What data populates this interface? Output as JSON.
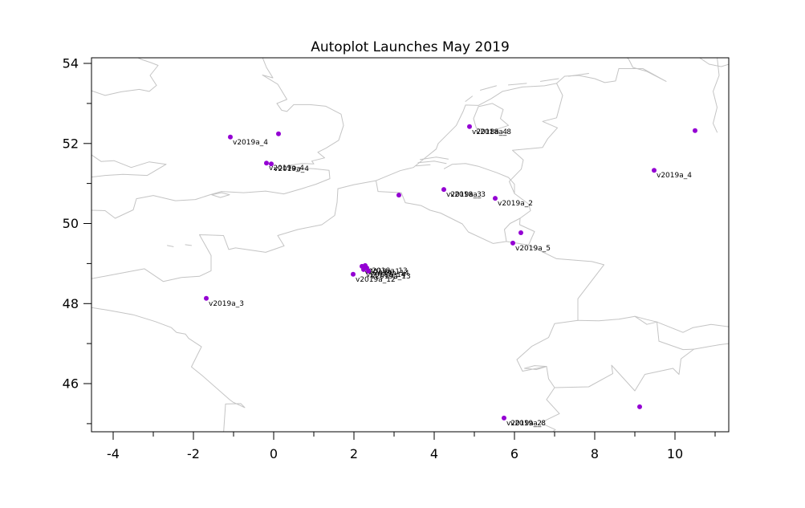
{
  "title": "Autoplot Launches May 2019",
  "colors": {
    "point": "#9400d3",
    "map_outline": "#c4c4c4",
    "axis": "#000000",
    "background": "#ffffff",
    "label_text": "#000000"
  },
  "chart_data": {
    "type": "scatter",
    "title": "Autoplot Launches May 2019",
    "xlabel": "",
    "ylabel": "",
    "basemap": "western-europe-coastline-and-border-outlines",
    "grid": false,
    "legend": "none",
    "xlim": [
      -4.54,
      11.34
    ],
    "ylim": [
      44.8,
      54.14
    ],
    "x_ticks": [
      -4,
      -2,
      0,
      2,
      4,
      6,
      8,
      10
    ],
    "x_minor_ticks": [
      -3,
      -1,
      1,
      3,
      5,
      7,
      9,
      11
    ],
    "y_ticks": [
      46,
      48,
      50,
      52,
      54
    ],
    "y_minor_ticks": [
      45,
      47,
      49,
      51,
      53
    ],
    "marker_color": "#9400d3",
    "points": [
      {
        "x": -1.08,
        "y": 52.16,
        "labels": [
          "v2019a_4"
        ]
      },
      {
        "x": 0.12,
        "y": 52.24,
        "labels": []
      },
      {
        "x": -0.18,
        "y": 51.51,
        "labels": [
          "v2019a_4"
        ]
      },
      {
        "x": -0.06,
        "y": 51.49,
        "labels": [
          "v2019a_4"
        ]
      },
      {
        "x": 4.88,
        "y": 52.42,
        "labels": [
          "v2018a_4",
          "v2018a_8"
        ]
      },
      {
        "x": 10.5,
        "y": 52.32,
        "labels": []
      },
      {
        "x": 9.48,
        "y": 51.33,
        "labels": [
          "v2019a_4"
        ]
      },
      {
        "x": 3.12,
        "y": 50.71,
        "labels": []
      },
      {
        "x": 4.24,
        "y": 50.85,
        "labels": [
          "v2019a_3",
          "v2018a_3"
        ]
      },
      {
        "x": 5.52,
        "y": 50.63,
        "labels": [
          "v2019a_2"
        ]
      },
      {
        "x": 6.16,
        "y": 49.77,
        "labels": []
      },
      {
        "x": 5.96,
        "y": 49.51,
        "labels": [
          "v2019a_5"
        ]
      },
      {
        "x": 1.98,
        "y": 48.73,
        "labels": [
          "v2019a_12"
        ]
      },
      {
        "x": 2.2,
        "y": 48.93,
        "labels": [
          "v2019a_1"
        ]
      },
      {
        "x": 2.28,
        "y": 48.95,
        "labels": [
          "v2018a_13"
        ]
      },
      {
        "x": 2.32,
        "y": 48.89,
        "labels": [
          "v2019a_14"
        ]
      },
      {
        "x": 2.24,
        "y": 48.85,
        "labels": [
          "v2018a_14"
        ]
      },
      {
        "x": 2.36,
        "y": 48.81,
        "labels": [
          "v2019a_13"
        ]
      },
      {
        "x": -1.68,
        "y": 48.13,
        "labels": [
          "v2019a_3"
        ]
      },
      {
        "x": 5.74,
        "y": 45.14,
        "labels": [
          "v2019a_2",
          "v2019a_8"
        ]
      },
      {
        "x": 9.12,
        "y": 45.42,
        "labels": []
      }
    ]
  }
}
